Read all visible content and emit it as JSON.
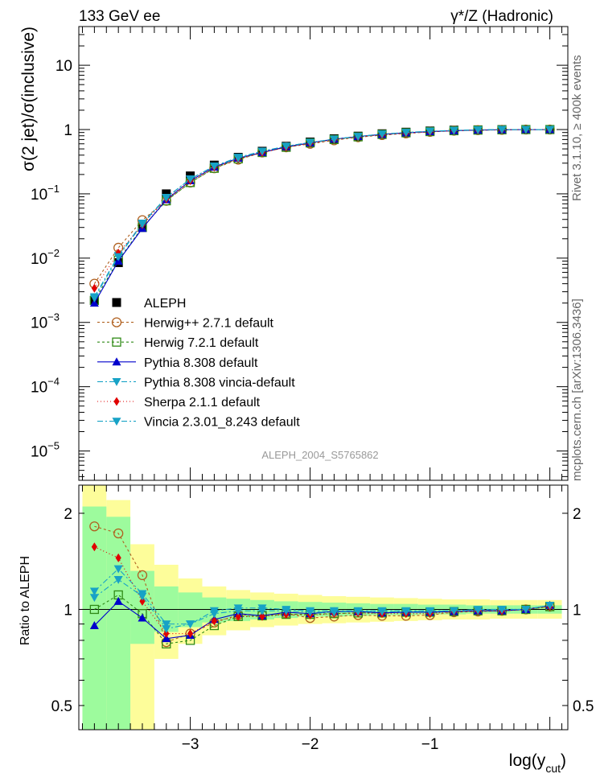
{
  "header": {
    "left_title": "133 GeV ee",
    "right_title": "γ*/Z (Hadronic)"
  },
  "side_labels": {
    "rivet": "Rivet 3.1.10, ≥ 400k events",
    "mcplots": "mcplots.cern.ch [arXiv:1306.3436]"
  },
  "analysis_label": "ALEPH_2004_S5765862",
  "chart_data": [
    {
      "type": "line",
      "panel": "main",
      "ylabel": "σ(2 jet)/σ(inclusive)",
      "yscale": "log",
      "ylim": [
        3.5e-06,
        40
      ],
      "xlim": [
        -3.93,
        0.15
      ],
      "y_ticks": [
        {
          "value": 10,
          "label": "10"
        },
        {
          "value": 1,
          "label": "1"
        },
        {
          "value": 0.1,
          "label": "10",
          "exp": "−1"
        },
        {
          "value": 0.01,
          "label": "10",
          "exp": "−2"
        },
        {
          "value": 0.001,
          "label": "10",
          "exp": "−3"
        },
        {
          "value": 0.0001,
          "label": "10",
          "exp": "−4"
        },
        {
          "value": 1e-05,
          "label": "10",
          "exp": "−5"
        }
      ],
      "x": [
        -3.8,
        -3.6,
        -3.4,
        -3.2,
        -3.0,
        -2.8,
        -2.6,
        -2.4,
        -2.2,
        -2.0,
        -1.8,
        -1.6,
        -1.4,
        -1.2,
        -1.0,
        -0.8,
        -0.6,
        -0.4,
        -0.2,
        0.0
      ],
      "series": [
        {
          "name": "ALEPH",
          "values": [
            0.0022,
            0.0085,
            0.031,
            0.1,
            0.19,
            0.28,
            0.37,
            0.46,
            0.55,
            0.64,
            0.72,
            0.79,
            0.86,
            0.91,
            0.95,
            0.98,
            0.99,
            1.0,
            1.0,
            1.0
          ]
        },
        {
          "name": "Herwig++ 2.7.1 default",
          "values": [
            0.004,
            0.0145,
            0.039,
            0.078,
            0.15,
            0.25,
            0.34,
            0.44,
            0.53,
            0.6,
            0.68,
            0.76,
            0.82,
            0.87,
            0.92,
            0.96,
            0.98,
            0.99,
            1.0,
            1.0
          ]
        },
        {
          "name": "Herwig 7.2.1 default",
          "values": [
            0.0022,
            0.0093,
            0.03,
            0.078,
            0.15,
            0.25,
            0.35,
            0.44,
            0.53,
            0.62,
            0.7,
            0.77,
            0.84,
            0.89,
            0.93,
            0.96,
            0.98,
            0.99,
            1.0,
            1.0
          ]
        },
        {
          "name": "Pythia 8.308 default",
          "values": [
            0.002,
            0.009,
            0.029,
            0.081,
            0.16,
            0.26,
            0.36,
            0.44,
            0.54,
            0.62,
            0.71,
            0.78,
            0.84,
            0.89,
            0.93,
            0.96,
            0.98,
            0.99,
            1.0,
            1.0
          ]
        },
        {
          "name": "Pythia 8.308 vincia-default",
          "values": [
            0.0025,
            0.011,
            0.035,
            0.088,
            0.17,
            0.27,
            0.37,
            0.46,
            0.55,
            0.63,
            0.71,
            0.78,
            0.85,
            0.9,
            0.94,
            0.97,
            0.99,
            1.0,
            1.0,
            1.0
          ]
        },
        {
          "name": "Sherpa 2.1.1 default",
          "values": [
            0.0034,
            0.012,
            0.033,
            0.083,
            0.16,
            0.26,
            0.35,
            0.44,
            0.53,
            0.61,
            0.7,
            0.77,
            0.83,
            0.88,
            0.92,
            0.96,
            0.98,
            0.99,
            1.0,
            1.0
          ]
        },
        {
          "name": "Vincia 2.3.01_8.243 default",
          "values": [
            0.0024,
            0.0105,
            0.034,
            0.087,
            0.17,
            0.27,
            0.36,
            0.46,
            0.55,
            0.63,
            0.71,
            0.78,
            0.85,
            0.9,
            0.94,
            0.97,
            0.99,
            1.0,
            1.0,
            1.0
          ]
        }
      ]
    },
    {
      "type": "line",
      "panel": "ratio",
      "ylabel": "Ratio to ALEPH",
      "xlabel": "log(y",
      "xlabel_sub": "cut",
      "xlabel_end": ")",
      "yscale": "log",
      "ylim": [
        0.42,
        2.45
      ],
      "xlim": [
        -3.93,
        0.15
      ],
      "y_ticks": [
        {
          "value": 2,
          "label": "2"
        },
        {
          "value": 1,
          "label": "1"
        },
        {
          "value": 0.5,
          "label": "0.5"
        }
      ],
      "x_ticks": [
        {
          "value": -3,
          "label": "−3"
        },
        {
          "value": -2,
          "label": "−2"
        },
        {
          "value": -1,
          "label": "−1"
        }
      ],
      "x": [
        -3.8,
        -3.6,
        -3.4,
        -3.2,
        -3.0,
        -2.8,
        -2.6,
        -2.4,
        -2.2,
        -2.0,
        -1.8,
        -1.6,
        -1.4,
        -1.2,
        -1.0,
        -0.8,
        -0.6,
        -0.4,
        -0.2,
        0.0
      ],
      "bin_edges": [
        -3.9,
        -3.7,
        -3.5,
        -3.3,
        -3.1,
        -2.9,
        -2.7,
        -2.5,
        -2.3,
        -2.1,
        -1.9,
        -1.7,
        -1.5,
        -1.3,
        -1.1,
        -0.9,
        -0.7,
        -0.5,
        -0.3,
        -0.1,
        0.1
      ],
      "band_green": [
        [
          0.35,
          2.1
        ],
        [
          0.35,
          1.95
        ],
        [
          0.78,
          1.32
        ],
        [
          0.85,
          1.18
        ],
        [
          0.88,
          1.13
        ],
        [
          0.91,
          1.09
        ],
        [
          0.92,
          1.08
        ],
        [
          0.93,
          1.07
        ],
        [
          0.94,
          1.06
        ],
        [
          0.95,
          1.055
        ],
        [
          0.95,
          1.05
        ],
        [
          0.955,
          1.045
        ],
        [
          0.96,
          1.04
        ],
        [
          0.96,
          1.04
        ],
        [
          0.965,
          1.035
        ],
        [
          0.965,
          1.035
        ],
        [
          0.97,
          1.03
        ],
        [
          0.97,
          1.03
        ],
        [
          0.97,
          1.03
        ],
        [
          0.97,
          1.03
        ]
      ],
      "band_yellow": [
        [
          0.35,
          2.45
        ],
        [
          0.35,
          2.2
        ],
        [
          0.4,
          1.6
        ],
        [
          0.7,
          1.38
        ],
        [
          0.78,
          1.25
        ],
        [
          0.83,
          1.18
        ],
        [
          0.86,
          1.15
        ],
        [
          0.88,
          1.13
        ],
        [
          0.89,
          1.12
        ],
        [
          0.9,
          1.11
        ],
        [
          0.905,
          1.1
        ],
        [
          0.91,
          1.095
        ],
        [
          0.915,
          1.09
        ],
        [
          0.92,
          1.085
        ],
        [
          0.925,
          1.08
        ],
        [
          0.93,
          1.075
        ],
        [
          0.93,
          1.075
        ],
        [
          0.935,
          1.07
        ],
        [
          0.935,
          1.07
        ],
        [
          0.935,
          1.07
        ]
      ],
      "series": [
        {
          "name": "Herwig++ 2.7.1 default",
          "values": [
            1.82,
            1.73,
            1.28,
            0.79,
            0.84,
            0.91,
            0.96,
            0.96,
            0.97,
            0.94,
            0.95,
            0.96,
            0.955,
            0.955,
            0.96,
            0.98,
            0.985,
            0.99,
            1.0,
            1.02
          ]
        },
        {
          "name": "Herwig 7.2.1 default",
          "values": [
            1.0,
            1.11,
            0.97,
            0.78,
            0.8,
            0.89,
            0.95,
            0.955,
            0.965,
            0.965,
            0.97,
            0.975,
            0.975,
            0.98,
            0.98,
            0.985,
            0.99,
            0.99,
            1.0,
            1.02
          ]
        },
        {
          "name": "Pythia 8.308 default",
          "values": [
            0.89,
            1.06,
            0.94,
            0.81,
            0.83,
            0.93,
            0.97,
            0.955,
            0.98,
            0.97,
            0.985,
            0.985,
            0.975,
            0.98,
            0.98,
            0.985,
            0.99,
            0.99,
            1.0,
            1.03
          ]
        },
        {
          "name": "Pythia 8.308 vincia-default",
          "values": [
            1.14,
            1.34,
            1.12,
            0.9,
            0.9,
            0.99,
            1.01,
            1.01,
            1.0,
            0.99,
            0.99,
            0.99,
            0.99,
            0.99,
            0.99,
            0.99,
            1.0,
            1.0,
            1.0,
            1.03
          ]
        },
        {
          "name": "Sherpa 2.1.1 default",
          "values": [
            1.57,
            1.45,
            1.06,
            0.84,
            0.84,
            0.92,
            0.95,
            0.95,
            0.965,
            0.96,
            0.97,
            0.975,
            0.97,
            0.97,
            0.97,
            0.985,
            0.99,
            0.99,
            1.0,
            1.02
          ]
        },
        {
          "name": "Vincia 2.3.01_8.243 default",
          "values": [
            1.09,
            1.24,
            1.1,
            0.87,
            0.9,
            0.97,
            0.99,
            0.99,
            0.99,
            0.98,
            0.98,
            0.985,
            0.985,
            0.985,
            0.985,
            0.99,
            0.995,
            1.0,
            1.0,
            1.03
          ]
        }
      ]
    }
  ],
  "styles": {
    "ALEPH": {
      "color": "#000000",
      "marker": "filled-square",
      "dash": ""
    },
    "Herwig++ 2.7.1 default": {
      "color": "#b0601f",
      "marker": "open-circle",
      "dash": "3,3"
    },
    "Herwig 7.2.1 default": {
      "color": "#2f8a16",
      "marker": "open-square",
      "dash": "3,3"
    },
    "Pythia 8.308 default": {
      "color": "#0000cc",
      "marker": "triangle-up",
      "dash": ""
    },
    "Pythia 8.308 vincia-default": {
      "color": "#17a2c6",
      "marker": "triangle-down",
      "dash": "7,3,2,3"
    },
    "Sherpa 2.1.1 default": {
      "color": "#e00000",
      "marker": "diamond",
      "dash": "1,3"
    },
    "Vincia 2.3.01_8.243 default": {
      "color": "#17a2c6",
      "marker": "triangle-down",
      "dash": "7,3,2,3"
    },
    "band_green": "#9dfb9d",
    "band_yellow": "#fdfd9a"
  }
}
